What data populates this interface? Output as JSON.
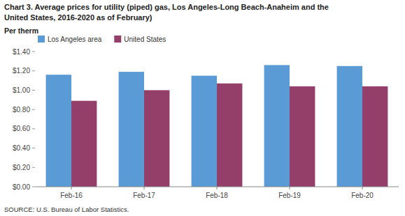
{
  "chart_data": {
    "type": "bar",
    "title": "Chart 3. Average prices for utility (piped) gas, Los Angeles-Long Beach-Anaheim and the",
    "subtitle": "United States, 2016-2020  as of February)",
    "y_label": "Per therm",
    "annotations": [
      "SOURCE: U.S. Bureau of Labor Statistics."
    ],
    "categories": [
      "Feb-16",
      "Feb-17",
      "Feb-18",
      "Feb-19",
      "Feb-20"
    ],
    "series": [
      {
        "name": "Los Angeles area",
        "color": "#5B9BD5",
        "values": [
          1.16,
          1.19,
          1.15,
          1.26,
          1.25
        ]
      },
      {
        "name": "United States",
        "color": "#943F6A",
        "values": [
          0.89,
          1.0,
          1.07,
          1.04,
          1.04
        ]
      }
    ],
    "ylim": [
      0,
      1.4
    ],
    "yticks": [
      {
        "value": 0.0,
        "label": "$0.00"
      },
      {
        "value": 0.2,
        "label": "$0.20"
      },
      {
        "value": 0.4,
        "label": "$0.40"
      },
      {
        "value": 0.6,
        "label": "$0.60"
      },
      {
        "value": 0.8,
        "label": "$0.80"
      },
      {
        "value": 1.0,
        "label": "$1.00"
      },
      {
        "value": 1.2,
        "label": "$1.20"
      },
      {
        "value": 1.4,
        "label": "$1.40"
      }
    ],
    "grid": false,
    "legend": "upper left"
  }
}
